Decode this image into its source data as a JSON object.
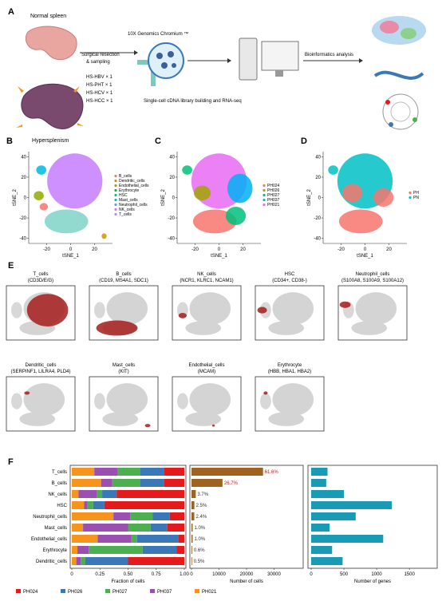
{
  "panel_labels": [
    "A",
    "B",
    "C",
    "D",
    "E",
    "F"
  ],
  "workflow": {
    "normal": "Normal spleen",
    "hyper": "Hypersplenism",
    "step1": [
      "Surgical resection",
      "& sampling"
    ],
    "samples": [
      "HS-HBV × 1",
      "HS-PHT × 1",
      "HS-HCV × 1",
      "HS-HCC × 1"
    ],
    "chromium": "10X Genomics Chromium ™",
    "library": "Single-cell cDNA library building and RNA-seq",
    "bioinfo": "Bioinformatics analysis"
  },
  "tsne": [
    {
      "xlabel": "tSNE_1",
      "ylabel": "tSNE_2",
      "xlim": [
        -35,
        35
      ],
      "ylim": [
        -45,
        45
      ],
      "xticks": [
        -20,
        0,
        20
      ],
      "yticks": [
        -40,
        -20,
        0,
        20,
        40
      ],
      "legend": [
        {
          "name": "B_cells",
          "color": "#f8766d"
        },
        {
          "name": "Dendritic_cells",
          "color": "#d39200"
        },
        {
          "name": "Endothelial_cells",
          "color": "#93aa00"
        },
        {
          "name": "Erythrocyte",
          "color": "#00ba38"
        },
        {
          "name": "HSC",
          "color": "#00c19f"
        },
        {
          "name": "Mast_cells",
          "color": "#00b9e3"
        },
        {
          "name": "Neutrophil_cells",
          "color": "#619cff"
        },
        {
          "name": "NK_cells",
          "color": "#db72fb"
        },
        {
          "name": "T_cells",
          "color": "#c77cff"
        }
      ]
    },
    {
      "xlabel": "tSNE_1",
      "ylabel": "tSNE_2",
      "xlim": [
        -35,
        35
      ],
      "ylim": [
        -45,
        45
      ],
      "xticks": [
        -20,
        0,
        20
      ],
      "yticks": [
        -40,
        -20,
        0,
        20,
        40
      ],
      "legend": [
        {
          "name": "PH024",
          "color": "#f8766d"
        },
        {
          "name": "PH026",
          "color": "#a3a500"
        },
        {
          "name": "PH027",
          "color": "#00bf7d"
        },
        {
          "name": "PH037",
          "color": "#00b0f6"
        },
        {
          "name": "PH021",
          "color": "#e76bf3"
        }
      ]
    },
    {
      "xlabel": "tSNE_1",
      "ylabel": "tSNE_2",
      "xlim": [
        -35,
        35
      ],
      "ylim": [
        -45,
        45
      ],
      "xticks": [
        -20,
        0,
        20
      ],
      "yticks": [
        -40,
        -20,
        0,
        20,
        40
      ],
      "legend": [
        {
          "name": "PH",
          "color": "#f8766d"
        },
        {
          "name": "PN",
          "color": "#00bfc4"
        }
      ]
    }
  ],
  "markers": [
    {
      "name": "T_cells",
      "genes": "(CD3D/E/G)"
    },
    {
      "name": "B_cells",
      "genes": "(CD19, MS4A1, SDC1)"
    },
    {
      "name": "NK_cells",
      "genes": "(NCR1, KLRC1, NCAM1)"
    },
    {
      "name": "HSC",
      "genes": "(CD34+, CD38-)"
    },
    {
      "name": "Neutrophil_cells",
      "genes": "(S100A8, S100A9, S100A12)"
    },
    {
      "name": "Dendritic_cells",
      "genes": "(SERPINF1, LILRA4, PLD4)"
    },
    {
      "name": "Mast_cells",
      "genes": "(KIT)"
    },
    {
      "name": "Endothelial_cells",
      "genes": "(MCAM)"
    },
    {
      "name": "Erythrocyte",
      "genes": "(HBB, HBA1, HBA2)"
    }
  ],
  "chart_data": [
    {
      "type": "stacked_barh",
      "xlabel": "Fraction of cells",
      "categories": [
        "T_cells",
        "B_cells",
        "NK_cells",
        "HSC",
        "Neutrophil_cells",
        "Mast_cells",
        "Endothelial_cells",
        "Erythrocyte",
        "Dendritic_cells"
      ],
      "series": [
        {
          "name": "PH021",
          "color": "#f7941d",
          "values": [
            0.2,
            0.26,
            0.06,
            0.11,
            0.37,
            0.1,
            0.23,
            0.05,
            0.04
          ]
        },
        {
          "name": "PH037",
          "color": "#9b4fb0",
          "values": [
            0.21,
            0.1,
            0.16,
            0.03,
            0.15,
            0.4,
            0.3,
            0.1,
            0.04
          ]
        },
        {
          "name": "PH027",
          "color": "#4caf50",
          "values": [
            0.2,
            0.25,
            0.05,
            0.05,
            0.2,
            0.2,
            0.05,
            0.48,
            0.04
          ]
        },
        {
          "name": "PH026",
          "color": "#3a78b8",
          "values": [
            0.21,
            0.21,
            0.13,
            0.1,
            0.15,
            0.15,
            0.37,
            0.3,
            0.38
          ]
        },
        {
          "name": "PH024",
          "color": "#e41a1c",
          "values": [
            0.18,
            0.18,
            0.6,
            0.71,
            0.13,
            0.15,
            0.05,
            0.07,
            0.5
          ]
        }
      ],
      "legend_order": [
        "PH024",
        "PH026",
        "PH027",
        "PH037",
        "PH021"
      ],
      "xlim": [
        0,
        1
      ],
      "xticks": [
        0,
        0.25,
        {
          "value": 0.5,
          "label": "0.50"
        },
        0.75,
        {
          "value": 1,
          "label": "1.00"
        }
      ]
    },
    {
      "type": "barh",
      "xlabel": "Number of cells",
      "color": "#a0621f",
      "values": [
        26000,
        11270,
        1560,
        1055,
        1013,
        422,
        422,
        253,
        211
      ],
      "annotations": [
        "61.6%",
        "26.7%",
        "3.7%",
        "2.5%",
        "2.4%",
        "1.0%",
        "1.0%",
        "0.6%",
        "0.5%"
      ],
      "xlim": [
        0,
        40000
      ],
      "xticks": [
        0,
        10000,
        20000,
        30000
      ]
    },
    {
      "type": "barh",
      "xlabel": "Number of genes",
      "color": "#1a9bb5",
      "values": [
        250,
        230,
        500,
        1230,
        680,
        280,
        1100,
        320,
        480
      ],
      "xlim": [
        0,
        1900
      ],
      "xticks": [
        0,
        500,
        1000,
        1500
      ]
    }
  ]
}
